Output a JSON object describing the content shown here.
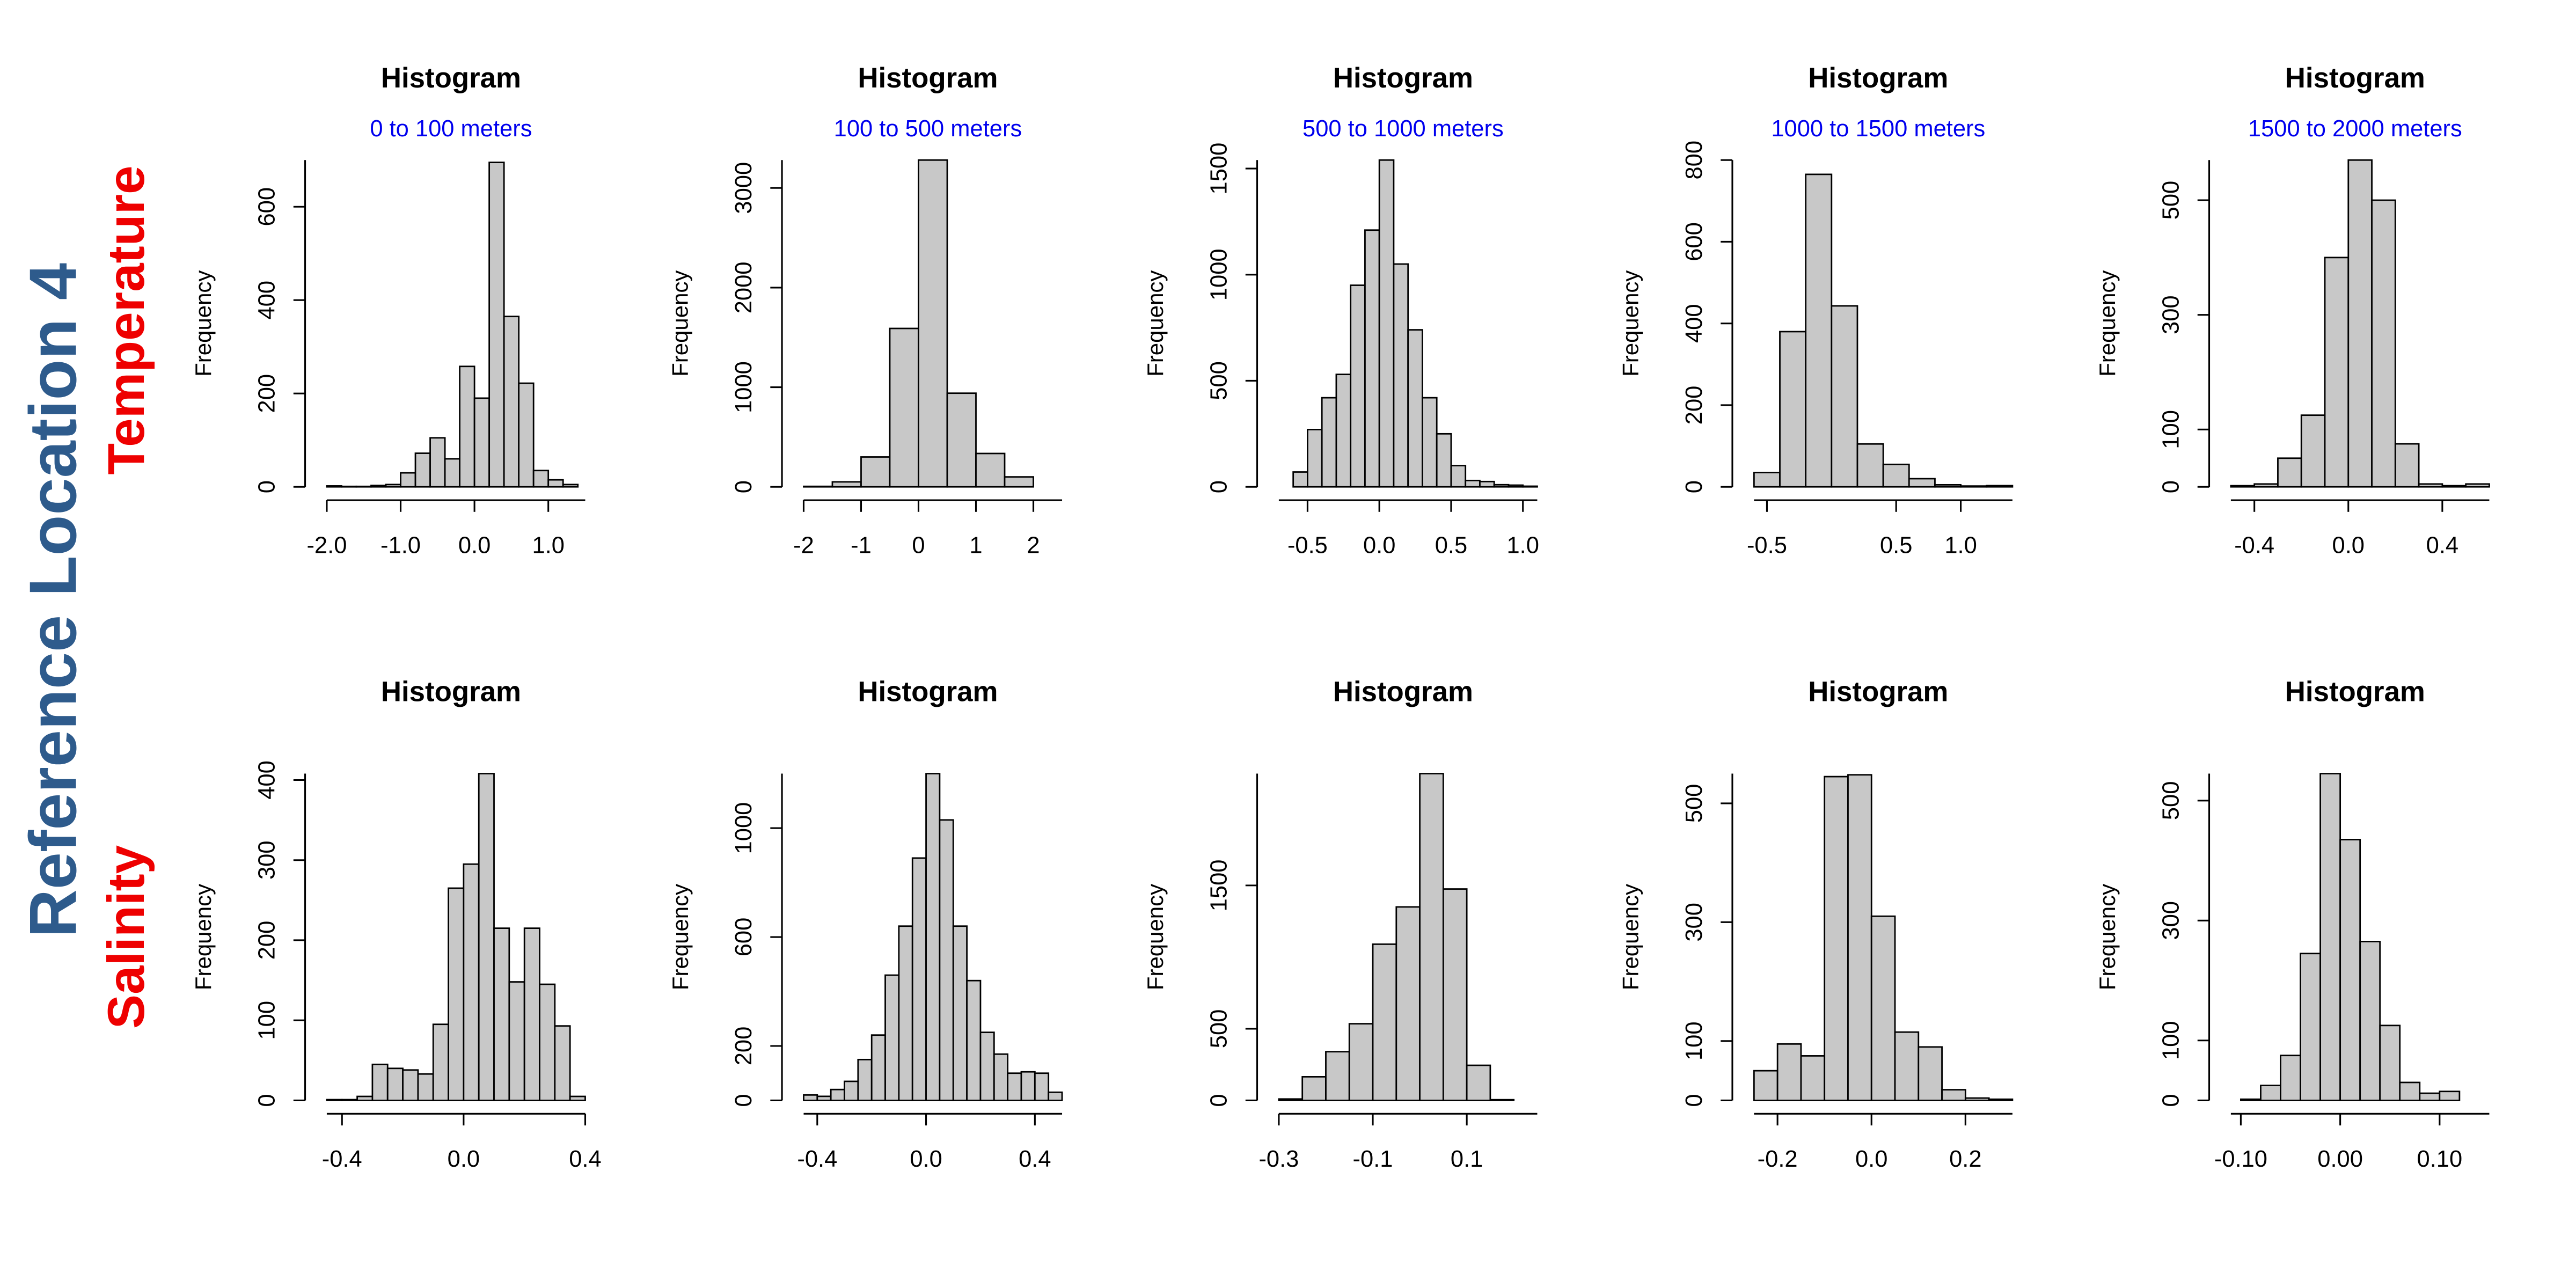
{
  "title": "Reference Location 4",
  "row_labels": [
    "Temperature",
    "Salinity"
  ],
  "chart_data": [
    {
      "type": "histogram",
      "title": "Histogram",
      "subtitle": "0 to 100 meters",
      "ylabel": "Frequency",
      "color": "#c8c8c8",
      "bins": [
        -2,
        -1.8,
        -1.6,
        -1.4,
        -1.2,
        -1,
        -0.8,
        -0.6,
        -0.4,
        -0.2,
        0,
        0.2,
        0.4,
        0.6,
        0.8,
        1,
        1.2,
        1.4
      ],
      "values": [
        2,
        1,
        1,
        3,
        5,
        30,
        72,
        105,
        60,
        258,
        190,
        695,
        365,
        222,
        35,
        15,
        5
      ],
      "xlim": [
        -2,
        1.5
      ],
      "ylim": [
        0,
        700
      ],
      "xticks": [
        {
          "value": -2,
          "label": "-2.0"
        },
        {
          "value": -1,
          "label": "-1.0"
        },
        {
          "value": 0,
          "label": "0.0"
        },
        {
          "value": 1,
          "label": "1.0"
        }
      ],
      "yticks": [
        0,
        200,
        400,
        600
      ]
    },
    {
      "type": "histogram",
      "title": "Histogram",
      "subtitle": "100 to 500 meters",
      "ylabel": "Frequency",
      "color": "#c8c8c8",
      "bins": [
        -2,
        -1.5,
        -1,
        -0.5,
        0,
        0.5,
        1,
        1.5,
        2
      ],
      "values": [
        5,
        50,
        300,
        1590,
        3280,
        940,
        335,
        100
      ],
      "xlim": [
        -2,
        2.5
      ],
      "ylim": [
        0,
        3280
      ],
      "xticks": [
        -2,
        -1,
        0,
        1,
        2
      ],
      "yticks": [
        0,
        1000,
        2000,
        3000
      ]
    },
    {
      "type": "histogram",
      "title": "Histogram",
      "subtitle": "500 to 1000 meters",
      "ylabel": "Frequency",
      "color": "#c8c8c8",
      "bins": [
        -0.6,
        -0.5,
        -0.4,
        -0.3,
        -0.2,
        -0.1,
        0,
        0.1,
        0.2,
        0.3,
        0.4,
        0.5,
        0.6,
        0.7,
        0.8,
        0.9,
        1,
        1.1
      ],
      "values": [
        70,
        270,
        420,
        530,
        950,
        1210,
        1540,
        1050,
        740,
        420,
        250,
        100,
        30,
        25,
        10,
        8,
        3
      ],
      "xlim": [
        -0.7,
        1.1
      ],
      "ylim": [
        0,
        1540
      ],
      "xticks": [
        -0.5,
        {
          "value": 0,
          "label": "0.0"
        },
        0.5,
        {
          "value": 1,
          "label": "1.0"
        }
      ],
      "yticks": [
        0,
        500,
        1000,
        1500
      ]
    },
    {
      "type": "histogram",
      "title": "Histogram",
      "subtitle": "1000 to 1500 meters",
      "ylabel": "Frequency",
      "color": "#c8c8c8",
      "bins": [
        -0.6,
        -0.4,
        -0.2,
        0,
        0.2,
        0.4,
        0.6,
        0.8,
        1,
        1.2,
        1.4
      ],
      "values": [
        35,
        380,
        765,
        443,
        105,
        55,
        20,
        5,
        2,
        3
      ],
      "xlim": [
        -0.6,
        1.4
      ],
      "ylim": [
        0,
        800
      ],
      "xticks": [
        -0.5,
        0.5,
        {
          "value": 1,
          "label": "1.0"
        }
      ],
      "yticks": [
        0,
        200,
        400,
        600,
        800
      ]
    },
    {
      "type": "histogram",
      "title": "Histogram",
      "subtitle": "1500 to 2000 meters",
      "ylabel": "Frequency",
      "color": "#c8c8c8",
      "bins": [
        -0.5,
        -0.4,
        -0.3,
        -0.2,
        -0.1,
        0,
        0.1,
        0.2,
        0.3,
        0.4,
        0.5,
        0.6
      ],
      "values": [
        2,
        5,
        50,
        125,
        400,
        570,
        500,
        75,
        5,
        2,
        5
      ],
      "xlim": [
        -0.5,
        0.6
      ],
      "ylim": [
        0,
        570
      ],
      "xticks": [
        -0.4,
        {
          "value": 0,
          "label": "0.0"
        },
        0.4
      ],
      "yticks": [
        0,
        100,
        300,
        500
      ]
    },
    {
      "type": "histogram",
      "title": "Histogram",
      "subtitle": "",
      "ylabel": "Frequency",
      "color": "#c8c8c8",
      "bins": [
        -0.45,
        -0.4,
        -0.35,
        -0.3,
        -0.25,
        -0.2,
        -0.15,
        -0.1,
        -0.05,
        0,
        0.05,
        0.1,
        0.15,
        0.2,
        0.25,
        0.3,
        0.35,
        0.4
      ],
      "values": [
        1,
        1,
        5,
        45,
        40,
        38,
        33,
        95,
        265,
        295,
        408,
        215,
        148,
        215,
        145,
        93,
        5
      ],
      "xlim": [
        -0.45,
        0.4
      ],
      "ylim": [
        0,
        408
      ],
      "xticks": [
        -0.4,
        {
          "value": 0,
          "label": "0.0"
        },
        0.4
      ],
      "yticks": [
        0,
        100,
        200,
        300,
        400
      ]
    },
    {
      "type": "histogram",
      "title": "Histogram",
      "subtitle": "",
      "ylabel": "Frequency",
      "color": "#c8c8c8",
      "bins": [
        -0.45,
        -0.4,
        -0.35,
        -0.3,
        -0.25,
        -0.2,
        -0.15,
        -0.1,
        -0.05,
        0,
        0.05,
        0.1,
        0.15,
        0.2,
        0.25,
        0.3,
        0.35,
        0.4,
        0.45,
        0.5
      ],
      "values": [
        20,
        15,
        40,
        70,
        150,
        240,
        460,
        640,
        890,
        1200,
        1030,
        640,
        440,
        250,
        170,
        100,
        105,
        100,
        30
      ],
      "xlim": [
        -0.45,
        0.5
      ],
      "ylim": [
        0,
        1200
      ],
      "xticks": [
        -0.4,
        {
          "value": 0,
          "label": "0.0"
        },
        0.4
      ],
      "yticks": [
        0,
        200,
        600,
        1000
      ]
    },
    {
      "type": "histogram",
      "title": "Histogram",
      "subtitle": "",
      "ylabel": "Frequency",
      "color": "#c8c8c8",
      "bins": [
        -0.3,
        -0.25,
        -0.2,
        -0.15,
        -0.1,
        -0.05,
        0,
        0.05,
        0.1,
        0.15,
        0.2
      ],
      "values": [
        10,
        165,
        340,
        535,
        1090,
        1350,
        2280,
        1475,
        245,
        5
      ],
      "xlim": [
        -0.3,
        0.25
      ],
      "ylim": [
        0,
        2280
      ],
      "xticks": [
        -0.3,
        -0.1,
        0.1
      ],
      "yticks": [
        0,
        500,
        1500
      ]
    },
    {
      "type": "histogram",
      "title": "Histogram",
      "subtitle": "",
      "ylabel": "Frequency",
      "color": "#c8c8c8",
      "bins": [
        -0.25,
        -0.2,
        -0.15,
        -0.1,
        -0.05,
        0,
        0.05,
        0.1,
        0.15,
        0.2,
        0.25,
        0.3
      ],
      "values": [
        50,
        95,
        75,
        545,
        548,
        310,
        115,
        90,
        18,
        4,
        2
      ],
      "xlim": [
        -0.25,
        0.3
      ],
      "ylim": [
        0,
        550
      ],
      "xticks": [
        -0.2,
        {
          "value": 0,
          "label": "0.0"
        },
        0.2
      ],
      "yticks": [
        0,
        100,
        300,
        500
      ]
    },
    {
      "type": "histogram",
      "title": "Histogram",
      "subtitle": "",
      "ylabel": "Frequency",
      "color": "#c8c8c8",
      "bins": [
        -0.1,
        -0.08,
        -0.06,
        -0.04,
        -0.02,
        0,
        0.02,
        0.04,
        0.06,
        0.08,
        0.1,
        0.12
      ],
      "values": [
        2,
        25,
        75,
        245,
        545,
        435,
        265,
        125,
        30,
        12,
        15
      ],
      "xlim": [
        -0.11,
        0.15
      ],
      "ylim": [
        0,
        545
      ],
      "xticks": [
        {
          "value": -0.1,
          "label": "-0.10"
        },
        {
          "value": 0,
          "label": "0.00"
        },
        {
          "value": 0.1,
          "label": "0.10"
        }
      ],
      "yticks": [
        0,
        100,
        300,
        500
      ]
    }
  ]
}
